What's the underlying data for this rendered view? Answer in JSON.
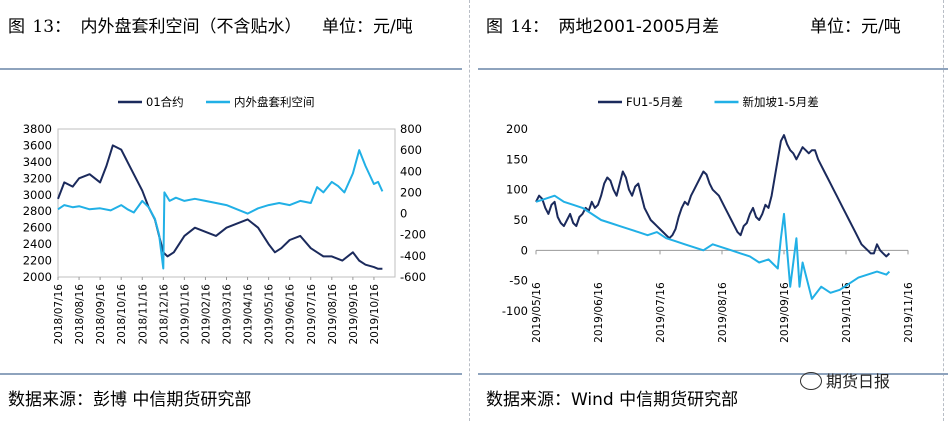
{
  "left": {
    "fig_label": "图",
    "fig_number": "13：",
    "title": "内外盘套利空间（不含贴水）",
    "unit": "单位：元/吨",
    "source": "数据来源：彭博 中信期货研究部"
  },
  "right": {
    "fig_label": "图",
    "fig_number": "14：",
    "title": "两地2001-2005月差",
    "unit": "单位：元/吨",
    "source": "数据来源：Wind 中信期货研究部"
  },
  "watermark": {
    "text": "期货日报",
    "icon": "wechat-icon"
  },
  "colors": {
    "dark": "#1b2a5c",
    "light": "#21b0e6"
  },
  "chart_data": [
    {
      "type": "line",
      "title": "内外盘套利空间（不含贴水）",
      "x_ticks": [
        "2018/07/16",
        "2018/08/16",
        "2018/09/16",
        "2018/10/16",
        "2018/11/16",
        "2018/12/16",
        "2019/01/16",
        "2019/02/16",
        "2019/03/16",
        "2019/04/16",
        "2019/05/16",
        "2019/06/16",
        "2019/07/16",
        "2019/08/16",
        "2019/09/16",
        "2019/10/16"
      ],
      "y_left_ticks": [
        "3800",
        "3600",
        "3400",
        "3200",
        "3000",
        "2800",
        "2600",
        "2400",
        "2200",
        "2000"
      ],
      "y_right_ticks": [
        "800",
        "600",
        "400",
        "200",
        "0",
        "-200",
        "-400",
        "-600"
      ],
      "ylim_left": [
        2000,
        3800
      ],
      "ylim_right": [
        -600,
        800
      ],
      "legend_position": "top",
      "series": [
        {
          "name": "01合约",
          "axis": "left",
          "color": "#1b2a5c",
          "x": [
            0,
            0.3,
            0.7,
            1,
            1.5,
            2,
            2.3,
            2.6,
            3,
            3.3,
            3.6,
            4,
            4.3,
            4.6,
            4.8,
            5,
            5.2,
            5.5,
            6,
            6.5,
            7,
            7.5,
            8,
            8.5,
            9,
            9.5,
            10,
            10.3,
            10.6,
            11,
            11.5,
            12,
            12.3,
            12.6,
            13,
            13.5,
            14,
            14.3,
            14.6,
            15,
            15.2,
            15.4
          ],
          "y": [
            2950,
            3150,
            3100,
            3200,
            3250,
            3150,
            3350,
            3600,
            3550,
            3400,
            3250,
            3050,
            2850,
            2700,
            2500,
            2300,
            2250,
            2300,
            2500,
            2600,
            2550,
            2500,
            2600,
            2650,
            2700,
            2600,
            2400,
            2300,
            2350,
            2450,
            2500,
            2350,
            2300,
            2250,
            2250,
            2200,
            2300,
            2200,
            2150,
            2120,
            2100,
            2100
          ]
        },
        {
          "name": "内外盘套利空间",
          "axis": "right",
          "color": "#21b0e6",
          "x": [
            0,
            0.3,
            0.7,
            1,
            1.5,
            2,
            2.5,
            3,
            3.3,
            3.6,
            4,
            4.3,
            4.6,
            4.8,
            5,
            5.05,
            5.3,
            5.6,
            6,
            6.5,
            7,
            7.5,
            8,
            8.5,
            9,
            9.5,
            10,
            10.5,
            11,
            11.5,
            12,
            12.3,
            12.6,
            13,
            13.3,
            13.6,
            14,
            14.3,
            14.6,
            15,
            15.2,
            15.4
          ],
          "y": [
            40,
            80,
            60,
            70,
            40,
            50,
            30,
            80,
            40,
            10,
            120,
            60,
            -50,
            -200,
            -520,
            200,
            120,
            150,
            120,
            140,
            120,
            100,
            80,
            40,
            0,
            50,
            80,
            100,
            80,
            120,
            100,
            250,
            200,
            300,
            260,
            200,
            380,
            600,
            450,
            280,
            300,
            210
          ]
        }
      ]
    },
    {
      "type": "line",
      "title": "两地2001-2005月差",
      "x_ticks": [
        "2019/05/16",
        "2019/06/16",
        "2019/07/16",
        "2019/08/16",
        "2019/09/16",
        "2019/10/16",
        "2019/11/16"
      ],
      "y_ticks": [
        "200",
        "150",
        "100",
        "50",
        "0",
        "-50",
        "-100"
      ],
      "ylim": [
        -100,
        200
      ],
      "legend_position": "top",
      "series": [
        {
          "name": "FU1-5月差",
          "color": "#1b2a5c",
          "x": [
            0,
            0.05,
            0.1,
            0.15,
            0.2,
            0.25,
            0.3,
            0.35,
            0.4,
            0.45,
            0.5,
            0.55,
            0.6,
            0.65,
            0.7,
            0.75,
            0.8,
            0.85,
            0.9,
            0.95,
            1,
            1.05,
            1.1,
            1.15,
            1.2,
            1.25,
            1.3,
            1.35,
            1.4,
            1.45,
            1.5,
            1.55,
            1.6,
            1.65,
            1.7,
            1.75,
            1.8,
            1.85,
            1.9,
            1.95,
            2,
            2.05,
            2.1,
            2.15,
            2.2,
            2.25,
            2.3,
            2.35,
            2.4,
            2.45,
            2.5,
            2.55,
            2.6,
            2.65,
            2.7,
            2.75,
            2.8,
            2.85,
            2.9,
            2.95,
            3,
            3.05,
            3.1,
            3.15,
            3.2,
            3.25,
            3.3,
            3.35,
            3.4,
            3.45,
            3.5,
            3.55,
            3.6,
            3.65,
            3.7,
            3.75,
            3.8,
            3.85,
            3.9,
            3.95,
            4,
            4.05,
            4.1,
            4.15,
            4.2,
            4.25,
            4.3,
            4.35,
            4.4,
            4.45,
            4.5,
            4.55,
            4.6,
            4.65,
            4.7,
            4.75,
            4.8,
            4.85,
            4.9,
            4.95,
            5,
            5.05,
            5.1,
            5.15,
            5.2,
            5.25,
            5.3,
            5.35,
            5.4,
            5.45,
            5.5,
            5.55,
            5.6,
            5.65,
            5.7
          ],
          "y": [
            80,
            90,
            85,
            70,
            60,
            75,
            80,
            55,
            45,
            40,
            50,
            60,
            45,
            40,
            55,
            60,
            70,
            65,
            80,
            70,
            75,
            90,
            110,
            120,
            115,
            100,
            90,
            110,
            130,
            120,
            100,
            90,
            105,
            110,
            90,
            70,
            60,
            50,
            45,
            40,
            35,
            30,
            25,
            20,
            25,
            35,
            55,
            70,
            80,
            75,
            90,
            100,
            110,
            120,
            130,
            125,
            110,
            100,
            95,
            90,
            80,
            70,
            60,
            50,
            40,
            30,
            25,
            40,
            45,
            60,
            70,
            55,
            50,
            60,
            75,
            70,
            90,
            120,
            150,
            180,
            190,
            175,
            165,
            160,
            150,
            160,
            170,
            165,
            160,
            165,
            165,
            150,
            140,
            130,
            120,
            110,
            100,
            90,
            80,
            70,
            60,
            50,
            40,
            30,
            20,
            10,
            5,
            0,
            -5,
            -5,
            10,
            0,
            -5,
            -10,
            -5
          ]
        },
        {
          "name": "新加坡1-5月差",
          "color": "#21b0e6",
          "x": [
            0,
            0.15,
            0.3,
            0.45,
            0.6,
            0.75,
            0.9,
            1.05,
            1.2,
            1.35,
            1.5,
            1.65,
            1.8,
            1.95,
            2.1,
            2.25,
            2.4,
            2.55,
            2.7,
            2.85,
            3,
            3.15,
            3.3,
            3.45,
            3.6,
            3.75,
            3.9,
            3.95,
            4,
            4.05,
            4.1,
            4.15,
            4.2,
            4.25,
            4.3,
            4.35,
            4.45,
            4.6,
            4.75,
            4.9,
            5.05,
            5.2,
            5.35,
            5.5,
            5.65,
            5.7
          ],
          "y": [
            80,
            85,
            90,
            80,
            75,
            70,
            60,
            50,
            45,
            40,
            35,
            30,
            25,
            30,
            20,
            15,
            10,
            5,
            0,
            10,
            5,
            0,
            -5,
            -10,
            -20,
            -15,
            -30,
            20,
            60,
            0,
            -60,
            -20,
            20,
            -60,
            -20,
            -40,
            -80,
            -60,
            -70,
            -65,
            -55,
            -45,
            -40,
            -35,
            -40,
            -35
          ]
        }
      ]
    }
  ]
}
